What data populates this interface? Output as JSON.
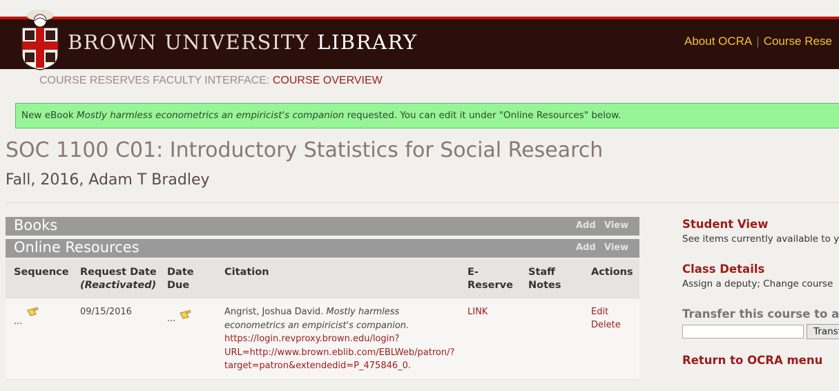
{
  "header": {
    "site_title_main": "BROWN UNIVERSITY",
    "site_title_emph": "LIBRARY",
    "nav": [
      {
        "label": "About OCRA"
      },
      {
        "label": "Course Rese"
      }
    ],
    "nav_separator": "|"
  },
  "breadcrumb": {
    "prefix": "COURSE RESERVES FACULTY INTERFACE:",
    "current": "COURSE OVERVIEW"
  },
  "flash": {
    "before": "New eBook ",
    "title": "Mostly harmless econometrics an empiricist's companion",
    "after": " requested. You can edit it under \"Online Resources\" below."
  },
  "course": {
    "title": "SOC 1100 C01: Introductory Statistics for Social Research",
    "subtitle": "Fall, 2016, Adam T Bradley"
  },
  "sections": {
    "books": {
      "label": "Books",
      "add": "Add",
      "view": "View"
    },
    "online": {
      "label": "Online Resources",
      "add": "Add",
      "view": "View"
    }
  },
  "table": {
    "headers": {
      "sequence": "Sequence",
      "request_date": "Request Date",
      "request_date_note": "(Reactivated)",
      "date_due_1": "Date",
      "date_due_2": "Due",
      "citation": "Citation",
      "ereserve_1": "E-",
      "ereserve_2": "Reserve",
      "staff_notes_1": "Staff",
      "staff_notes_2": "Notes",
      "actions": "Actions"
    },
    "rows": [
      {
        "sequence_ellipsis": "...",
        "request_date": "09/15/2016",
        "date_due_ellipsis": "...",
        "citation_author": "Angrist, Joshua David. ",
        "citation_title": "Mostly harmless econometrics an empiricist's companion.",
        "citation_url_1": "https://login.revproxy.brown.edu/login?",
        "citation_url_2": "URL=http://www.brown.eblib.com/EBLWeb/patron/?",
        "citation_url_3": "target=patron&extendedid=P_475846_0",
        "citation_end": ".",
        "ereserve": "LINK",
        "edit": "Edit",
        "delete": "Delete"
      }
    ]
  },
  "sidebar": {
    "student_view_title": "Student View",
    "student_view_desc": "See items currently available to y",
    "class_details_title": "Class Details",
    "class_details_desc": "Assign a deputy; Change course",
    "transfer_title": "Transfer this course to and",
    "transfer_button": "Transf",
    "return_link": "Return to OCRA menu"
  },
  "colors": {
    "banner": "#2b0f0b",
    "accent_red": "#9b1b1b",
    "nav_gold": "#f3c337",
    "flash_green": "#98f597",
    "section_gray": "#9a9a9a"
  },
  "icons": [
    "brown-crest-logo",
    "note-icon"
  ]
}
